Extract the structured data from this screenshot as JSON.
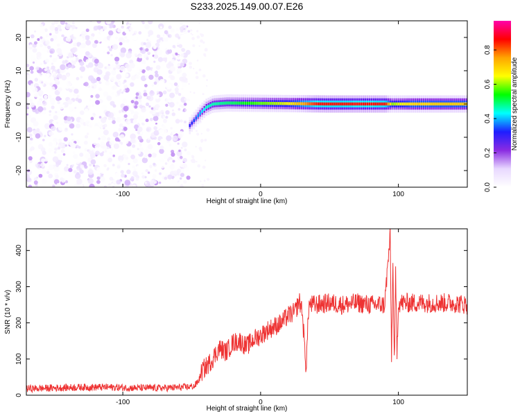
{
  "title": "S233.2025.149.00.07.E26",
  "chart_data": [
    {
      "type": "heatmap",
      "xlabel": "Height of straight line (km)",
      "ylabel": "Frequency (Hz)",
      "xlim": [
        -170,
        150
      ],
      "ylim": [
        -25,
        25
      ],
      "xticks": [
        -100,
        0,
        100
      ],
      "yticks": [
        -20,
        -10,
        0,
        10,
        20
      ],
      "colorbar": {
        "label": "Normalized spectral amplitude",
        "range": [
          0,
          0.97
        ],
        "ticks": [
          0,
          0.2,
          0.4,
          0.6,
          0.8
        ],
        "colormap": [
          "#ffffff",
          "#e8d8ff",
          "#8a2be2",
          "#1e1eff",
          "#00ffff",
          "#00ff00",
          "#ffff00",
          "#ffa500",
          "#ff0000",
          "#ff00aa"
        ]
      },
      "noise_region": {
        "x_range": [
          -170,
          -52
        ],
        "amplitude": 0.1
      },
      "ridge": [
        {
          "x": -52,
          "y": -6.5
        },
        {
          "x": -45,
          "y": -3
        },
        {
          "x": -40,
          "y": -1
        },
        {
          "x": -35,
          "y": 0
        },
        {
          "x": -25,
          "y": 0.3
        },
        {
          "x": 0,
          "y": 0.2
        },
        {
          "x": 50,
          "y": 0
        },
        {
          "x": 100,
          "y": 0
        },
        {
          "x": 150,
          "y": 0
        }
      ],
      "ridge_amplitude": [
        {
          "x": -52,
          "v": 0.3
        },
        {
          "x": -40,
          "v": 0.45
        },
        {
          "x": -20,
          "v": 0.5
        },
        {
          "x": 20,
          "v": 0.65
        },
        {
          "x": 40,
          "v": 0.85
        },
        {
          "x": 90,
          "v": 0.85
        },
        {
          "x": 95,
          "v": 0.6
        },
        {
          "x": 110,
          "v": 0.7
        },
        {
          "x": 150,
          "v": 0.7
        }
      ]
    },
    {
      "type": "line",
      "xlabel": "Height of straight line (km)",
      "ylabel": "SNR (10 * v/v)",
      "xlim": [
        -170,
        150
      ],
      "ylim": [
        0,
        460
      ],
      "xticks": [
        -100,
        0,
        100
      ],
      "yticks": [
        0,
        100,
        200,
        300,
        400
      ],
      "color": "#ee3333",
      "series": [
        {
          "x": [
            -170,
            -150,
            -130,
            -110,
            -90,
            -70,
            -55,
            -48,
            -45,
            -42,
            -38,
            -35,
            -30,
            -25,
            -20,
            -15,
            -12,
            -10,
            -5,
            0,
            5,
            10,
            15,
            20,
            25,
            28,
            30,
            33,
            35,
            40,
            50,
            60,
            70,
            80,
            90,
            94,
            95,
            96,
            97,
            98,
            99,
            100,
            110,
            120,
            130,
            140,
            150
          ],
          "y": [
            18,
            20,
            22,
            22,
            20,
            20,
            22,
            25,
            40,
            70,
            85,
            100,
            130,
            120,
            145,
            150,
            140,
            135,
            155,
            165,
            180,
            190,
            200,
            220,
            230,
            260,
            240,
            75,
            250,
            250,
            255,
            250,
            255,
            250,
            250,
            440,
            110,
            360,
            90,
            330,
            120,
            255,
            255,
            255,
            255,
            255,
            250
          ]
        }
      ]
    }
  ]
}
